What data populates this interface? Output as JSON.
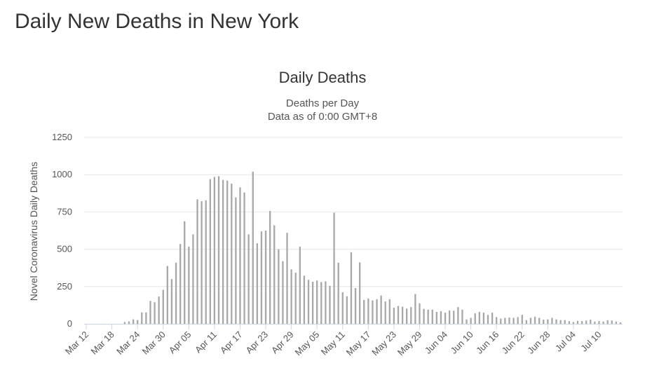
{
  "page": {
    "title": "Daily New Deaths in New York"
  },
  "chart_data": {
    "type": "bar",
    "title": "Daily Deaths",
    "subtitle_lines": [
      "Deaths per Day",
      "Data as of 0:00 GMT+8"
    ],
    "xlabel": "",
    "ylabel": "Novel Coronavirus Daily Deaths",
    "ylim": [
      0,
      1250
    ],
    "yticks": [
      0,
      250,
      500,
      750,
      1000,
      1250
    ],
    "grid": true,
    "legend": "none",
    "categories_start": "Mar 12",
    "x_tick_labels": [
      "Mar 12",
      "Mar 18",
      "Mar 24",
      "Mar 30",
      "Apr 05",
      "Apr 11",
      "Apr 17",
      "Apr 23",
      "Apr 29",
      "May 05",
      "May 11",
      "May 17",
      "May 23",
      "May 29",
      "Jun 04",
      "Jun 10",
      "Jun 16",
      "Jun 22",
      "Jun 28",
      "Jul 04",
      "Jul 10"
    ],
    "x_tick_every": 6,
    "values": [
      0,
      0,
      0,
      0,
      0,
      0,
      0,
      0,
      0,
      12,
      16,
      30,
      25,
      77,
      77,
      154,
      145,
      183,
      228,
      388,
      300,
      410,
      535,
      688,
      518,
      600,
      835,
      822,
      828,
      970,
      985,
      990,
      965,
      960,
      940,
      848,
      915,
      880,
      600,
      1020,
      540,
      620,
      625,
      757,
      660,
      500,
      420,
      610,
      365,
      343,
      518,
      323,
      295,
      282,
      290,
      280,
      285,
      255,
      745,
      410,
      212,
      185,
      480,
      240,
      412,
      160,
      170,
      157,
      165,
      190,
      150,
      165,
      108,
      120,
      115,
      102,
      112,
      200,
      138,
      100,
      95,
      95,
      80,
      85,
      75,
      90,
      88,
      112,
      95,
      30,
      40,
      70,
      80,
      75,
      60,
      75,
      45,
      35,
      40,
      42,
      40,
      45,
      60,
      25,
      40,
      48,
      40,
      28,
      30,
      40,
      30,
      25,
      25,
      18,
      12,
      20,
      18,
      22,
      28,
      15,
      18,
      15,
      24,
      22,
      15,
      10
    ]
  }
}
